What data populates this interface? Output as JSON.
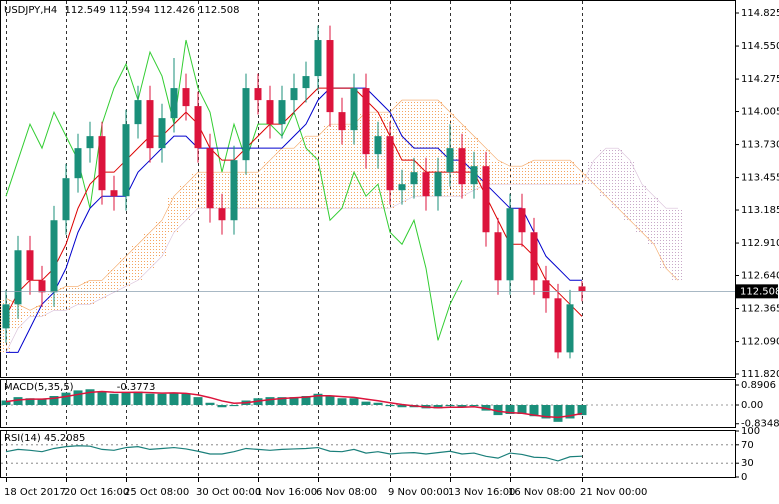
{
  "chart_data": [
    {
      "type": "candlestick",
      "title": "USDJPY,H4",
      "categories": [
        "18 Oct 2017",
        null,
        null,
        null,
        null,
        "20 Oct 16:00",
        null,
        null,
        null,
        null,
        "25 Oct 08:00",
        null,
        null,
        null,
        null,
        null,
        "30 Oct 00:00",
        null,
        null,
        null,
        null,
        "1 Nov 16:00",
        null,
        null,
        null,
        null,
        "6 Nov 08:00",
        null,
        null,
        null,
        null,
        null,
        "9 Nov 00:00",
        null,
        null,
        null,
        null,
        "13 Nov 16:00",
        null,
        null,
        null,
        null,
        "16 Nov 08:00",
        null,
        null,
        null,
        null,
        null,
        "21 Nov 00:00",
        null,
        null,
        null,
        null,
        null,
        null,
        null,
        null
      ],
      "candles": {
        "open": [
          112.2,
          112.4,
          112.85,
          112.6,
          112.5,
          113.1,
          113.45,
          113.7,
          113.8,
          113.35,
          113.3,
          113.9,
          114.1,
          113.7,
          113.95,
          114.2,
          114.05,
          113.7,
          113.2,
          113.1,
          113.6,
          114.2,
          114.1,
          113.9,
          114.1,
          114.2,
          114.3,
          114.6,
          114.0,
          113.85,
          114.2,
          113.65,
          113.8,
          113.35,
          113.4,
          113.5,
          113.3,
          113.5,
          113.7,
          113.4,
          113.55,
          113.0,
          112.6,
          113.2,
          113.0,
          112.6,
          112.45,
          112.0,
          112.549
        ],
        "high": [
          112.52,
          112.97,
          112.97,
          112.72,
          113.22,
          113.57,
          113.82,
          113.92,
          113.92,
          113.47,
          114.02,
          114.22,
          114.22,
          114.07,
          114.45,
          114.32,
          114.17,
          113.82,
          113.32,
          113.72,
          114.32,
          114.32,
          114.22,
          114.22,
          114.32,
          114.42,
          114.72,
          114.72,
          114.12,
          114.32,
          114.32,
          113.92,
          113.92,
          113.52,
          113.62,
          113.62,
          113.62,
          113.9,
          113.82,
          113.67,
          113.67,
          113.12,
          113.32,
          113.32,
          113.12,
          112.72,
          112.57,
          112.52,
          112.594
        ],
        "low": [
          112.08,
          112.28,
          112.48,
          112.38,
          112.38,
          112.98,
          113.33,
          113.58,
          113.23,
          113.18,
          113.18,
          113.78,
          113.58,
          113.58,
          113.83,
          113.93,
          113.58,
          113.08,
          112.98,
          112.98,
          113.48,
          113.98,
          113.78,
          113.78,
          113.98,
          114.08,
          114.18,
          113.88,
          113.73,
          113.73,
          113.53,
          113.53,
          113.23,
          113.23,
          113.28,
          113.18,
          113.18,
          113.38,
          113.28,
          113.28,
          112.88,
          112.48,
          112.48,
          112.88,
          112.48,
          112.33,
          111.95,
          111.95,
          112.426
        ],
        "close": [
          112.4,
          112.85,
          112.6,
          112.5,
          113.1,
          113.45,
          113.7,
          113.8,
          113.35,
          113.3,
          113.9,
          114.1,
          113.7,
          113.95,
          114.2,
          114.05,
          113.7,
          113.2,
          113.1,
          113.6,
          114.2,
          114.1,
          113.9,
          114.1,
          114.2,
          114.3,
          114.6,
          114.0,
          113.85,
          114.2,
          113.65,
          113.8,
          113.35,
          113.4,
          113.5,
          113.3,
          113.5,
          113.7,
          113.4,
          113.55,
          113.0,
          112.6,
          113.2,
          113.0,
          112.6,
          112.45,
          112.0,
          112.4,
          112.508
        ]
      },
      "up_color": "#1a8f7a",
      "down_color": "#dc143c",
      "tenkan": {
        "color": "#dc0000",
        "values": [
          112.3,
          112.5,
          112.6,
          112.6,
          112.7,
          112.9,
          113.2,
          113.4,
          113.5,
          113.5,
          113.6,
          113.7,
          113.8,
          113.8,
          113.9,
          114.0,
          113.9,
          113.7,
          113.6,
          113.6,
          113.7,
          113.8,
          113.9,
          113.9,
          114.0,
          114.1,
          114.2,
          114.2,
          114.2,
          114.2,
          114.1,
          114.0,
          113.8,
          113.6,
          113.6,
          113.5,
          113.5,
          113.5,
          113.5,
          113.5,
          113.3,
          113.1,
          112.9,
          112.9,
          112.8,
          112.6,
          112.5,
          112.4,
          112.3
        ]
      },
      "kijun": {
        "color": "#0000cd",
        "values": [
          112.0,
          112.0,
          112.2,
          112.4,
          112.5,
          112.7,
          113.0,
          113.2,
          113.3,
          113.3,
          113.3,
          113.5,
          113.6,
          113.7,
          113.8,
          113.8,
          113.7,
          113.7,
          113.7,
          113.7,
          113.7,
          113.7,
          113.7,
          113.7,
          113.8,
          113.9,
          114.1,
          114.2,
          114.2,
          114.2,
          114.2,
          114.1,
          114.0,
          113.8,
          113.7,
          113.7,
          113.7,
          113.6,
          113.6,
          113.5,
          113.4,
          113.3,
          113.2,
          113.2,
          113.0,
          112.8,
          112.7,
          112.6,
          112.6
        ]
      },
      "chikou": {
        "color": "#32cd32",
        "values": [
          113.3,
          113.6,
          113.9,
          113.7,
          114.0,
          113.8,
          113.6,
          113.2,
          113.9,
          114.2,
          114.4,
          114.1,
          114.5,
          114.3,
          113.9,
          114.6,
          114.2,
          114.0,
          113.5,
          113.9,
          113.6,
          113.9,
          113.9,
          113.8,
          114.0,
          113.7,
          113.6,
          113.1,
          113.2,
          113.5,
          113.3,
          113.4,
          113.0,
          112.9,
          113.1,
          112.7,
          112.1,
          112.4,
          112.6,
          null,
          null,
          null,
          null,
          null,
          null,
          null,
          null,
          null,
          null
        ]
      },
      "span_a": {
        "color": "#f4a460",
        "values": [
          112.45,
          112.4,
          112.35,
          112.4,
          112.5,
          112.55,
          112.55,
          112.6,
          112.6,
          112.7,
          112.8,
          112.9,
          113.0,
          113.1,
          113.3,
          113.4,
          113.5,
          113.5,
          113.5,
          113.5,
          113.5,
          113.5,
          113.6,
          113.7,
          113.7,
          113.8,
          113.8,
          113.9,
          113.9,
          113.9,
          114.0,
          114.0,
          114.0,
          114.1,
          114.1,
          114.1,
          114.1,
          114.0,
          113.9,
          113.8,
          113.7,
          113.6,
          113.55,
          113.55,
          113.6,
          113.6,
          113.6,
          113.6,
          113.5,
          113.4,
          113.3,
          113.2,
          113.1,
          113.0,
          112.9,
          112.7,
          112.6
        ]
      },
      "span_b": {
        "color": "#d8bfd8",
        "values": [
          112.0,
          112.2,
          112.3,
          112.3,
          112.35,
          112.35,
          112.4,
          112.4,
          112.45,
          112.5,
          112.55,
          112.6,
          112.7,
          112.8,
          113.0,
          113.1,
          113.2,
          113.2,
          113.2,
          113.2,
          113.2,
          113.2,
          113.2,
          113.2,
          113.2,
          113.2,
          113.2,
          113.2,
          113.2,
          113.2,
          113.2,
          113.2,
          113.2,
          113.25,
          113.3,
          113.3,
          113.3,
          113.3,
          113.3,
          113.35,
          113.4,
          113.4,
          113.4,
          113.4,
          113.4,
          113.4,
          113.4,
          113.4,
          113.4,
          113.6,
          113.7,
          113.7,
          113.6,
          113.4,
          113.3,
          113.2,
          113.2
        ]
      },
      "ylim": [
        111.795,
        114.925
      ],
      "yticks": [
        114.825,
        {
          "value": 114.55,
          "label": "114.550"
        },
        114.275,
        114.005,
        {
          "value": 113.73,
          "label": "113.730"
        },
        113.455,
        113.185,
        {
          "value": 112.91,
          "label": "112.910"
        },
        {
          "value": 112.64,
          "label": "112.640"
        },
        112.365,
        {
          "value": 112.09,
          "label": "112.090"
        },
        {
          "value": 111.82,
          "label": "111.820"
        }
      ]
    },
    {
      "type": "macd",
      "title": "MACD(5,35,5)",
      "histogram": {
        "color": "#1a8f7a",
        "values": [
          0.2,
          0.35,
          0.3,
          0.25,
          0.4,
          0.55,
          0.65,
          0.7,
          0.6,
          0.5,
          0.55,
          0.6,
          0.5,
          0.5,
          0.55,
          0.5,
          0.35,
          0.1,
          -0.1,
          -0.05,
          0.2,
          0.3,
          0.35,
          0.35,
          0.35,
          0.4,
          0.5,
          0.4,
          0.3,
          0.3,
          0.15,
          0.1,
          -0.05,
          -0.1,
          -0.1,
          -0.15,
          -0.15,
          -0.05,
          -0.1,
          -0.05,
          -0.25,
          -0.45,
          -0.4,
          -0.4,
          -0.5,
          -0.6,
          -0.75,
          -0.6,
          -0.45
        ]
      },
      "signal": {
        "color": "#dc143c",
        "values": [
          0.15,
          0.22,
          0.26,
          0.26,
          0.3,
          0.38,
          0.47,
          0.56,
          0.6,
          0.57,
          0.56,
          0.57,
          0.55,
          0.53,
          0.54,
          0.52,
          0.45,
          0.33,
          0.18,
          0.08,
          0.1,
          0.17,
          0.24,
          0.29,
          0.32,
          0.35,
          0.41,
          0.41,
          0.37,
          0.34,
          0.26,
          0.19,
          0.1,
          0.02,
          -0.04,
          -0.09,
          -0.12,
          -0.1,
          -0.1,
          -0.08,
          -0.15,
          -0.28,
          -0.34,
          -0.37,
          -0.45,
          -0.52,
          -0.55,
          -0.48,
          -0.3773
        ]
      },
      "ylim": [
        -0.98,
        1.113
      ],
      "yticks": [
        0.8906,
        {
          "value": 0,
          "label": "0.00"
        },
        -0.8348
      ]
    },
    {
      "type": "rsi",
      "title": "RSI(14)",
      "line": {
        "color": "#1a7f7a",
        "values": [
          55,
          60,
          58,
          55,
          62,
          66,
          68,
          67,
          60,
          58,
          64,
          66,
          60,
          62,
          64,
          61,
          56,
          50,
          50,
          55,
          62,
          60,
          58,
          60,
          61,
          62,
          64,
          56,
          55,
          60,
          52,
          55,
          50,
          52,
          53,
          50,
          53,
          56,
          50,
          52,
          45,
          41,
          52,
          49,
          43,
          42,
          35,
          44,
          45.2085
        ]
      },
      "ylim": [
        0,
        100
      ],
      "yticks": [
        100,
        70,
        30,
        0
      ],
      "levels": [
        70,
        30
      ]
    }
  ]
}
